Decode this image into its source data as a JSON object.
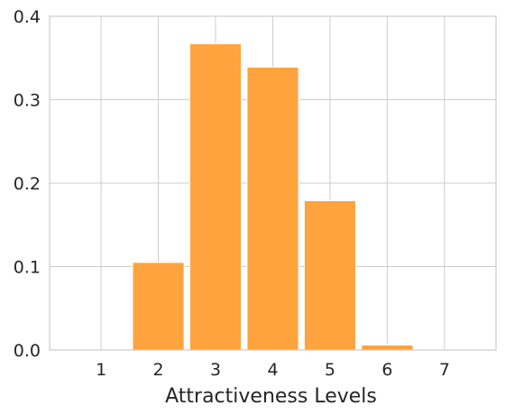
{
  "chart_data": {
    "type": "bar",
    "x": [
      1,
      2,
      3,
      4,
      5,
      6,
      7
    ],
    "values": [
      0.0,
      0.105,
      0.367,
      0.339,
      0.179,
      0.006,
      0.0
    ],
    "xlabel": "Attractiveness Levels",
    "ylabel": "",
    "xlim": [
      0.1,
      7.9
    ],
    "ylim": [
      0,
      0.4
    ],
    "xticks": [
      1,
      2,
      3,
      4,
      5,
      6,
      7
    ],
    "yticks": [
      0.0,
      0.1,
      0.2,
      0.3,
      0.4
    ],
    "ytick_labels": [
      "0.0",
      "0.1",
      "0.2",
      "0.3",
      "0.4"
    ],
    "bar_width": 0.9,
    "grid": true,
    "bar_color": "#ffa33e",
    "bar_edge_color": "#ffffff"
  }
}
